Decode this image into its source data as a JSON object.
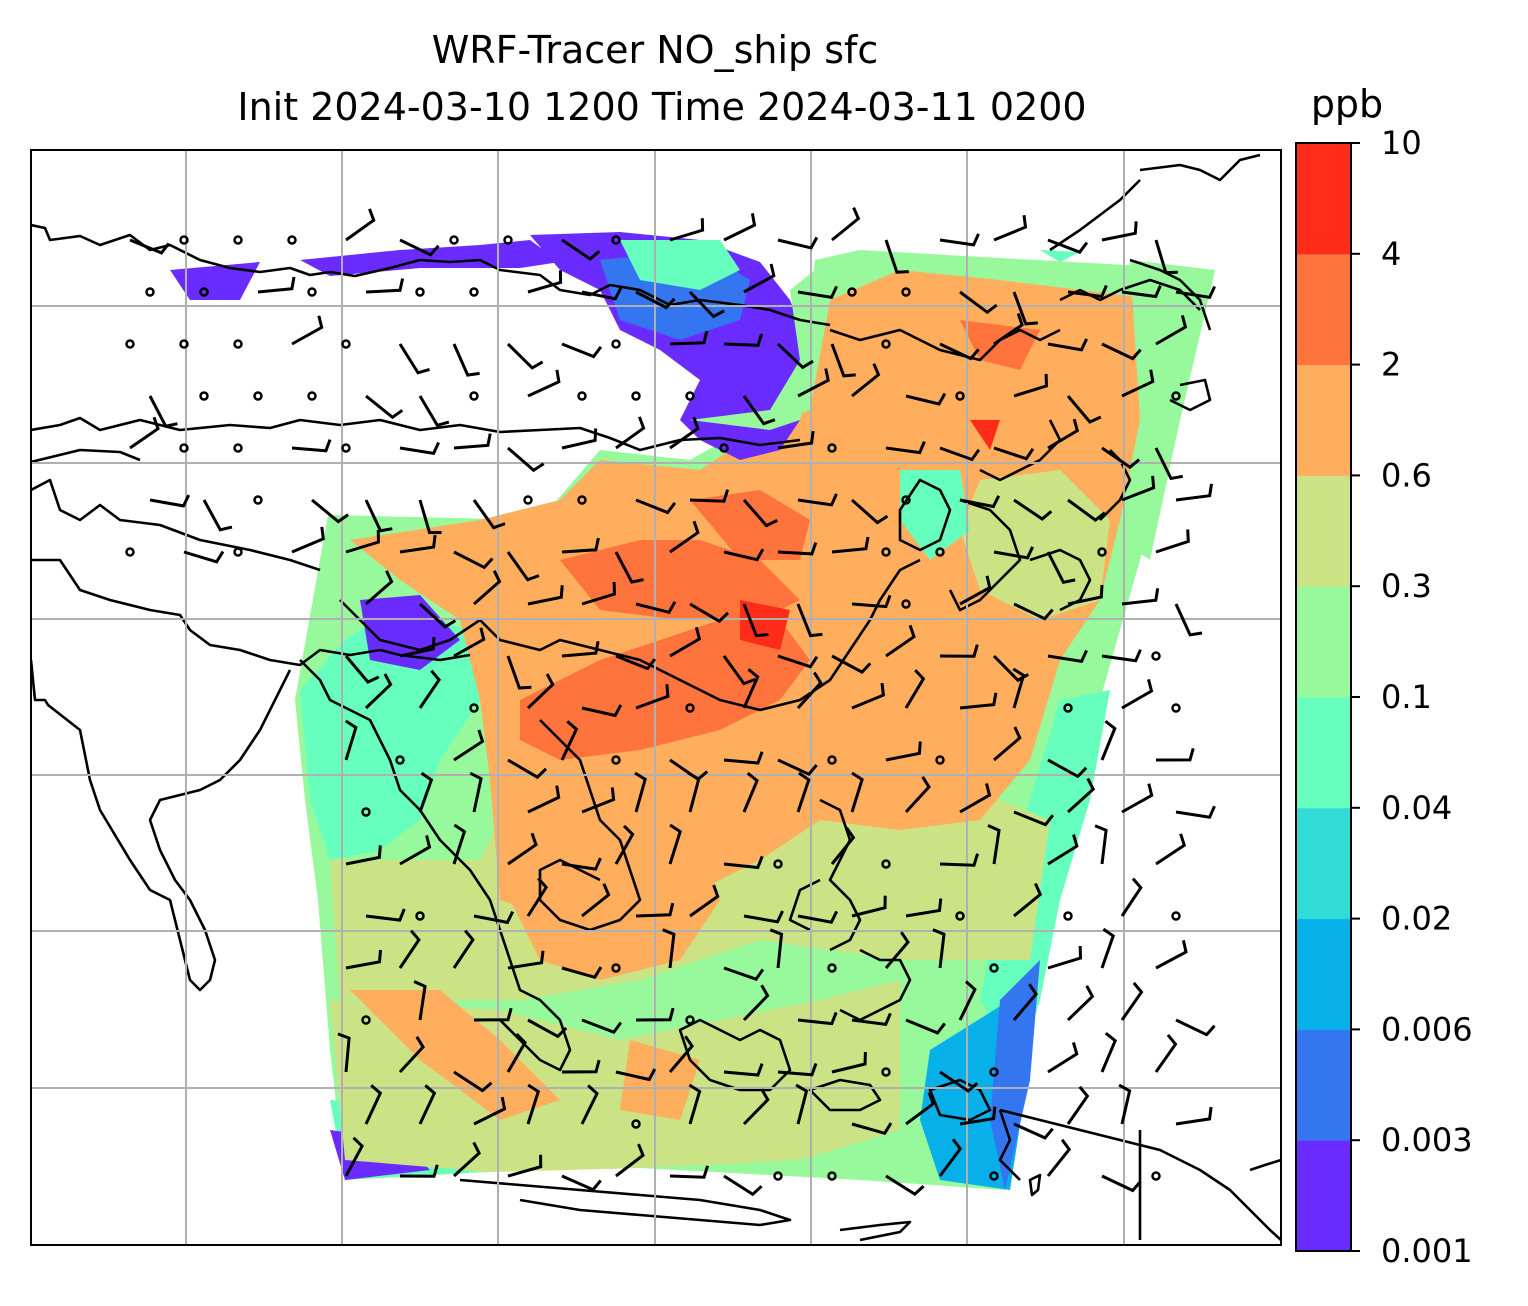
{
  "title_line1": "WRF-Tracer NO_ship sfc",
  "title_line2": "Init 2024-03-10 1200 Time 2024-03-11 0200",
  "colorbar": {
    "unit": "ppb",
    "levels": [
      "0.001",
      "0.003",
      "0.006",
      "0.02",
      "0.04",
      "0.1",
      "0.3",
      "0.6",
      "2",
      "4",
      "10"
    ],
    "colors": [
      "#6a2bff",
      "#3476f0",
      "#08b0ea",
      "#31dcd6",
      "#66ffbe",
      "#98f99c",
      "#cbe285",
      "#ffae5e",
      "#ff743c",
      "#ff2c19"
    ]
  },
  "map": {
    "projection": "Lambert conformal",
    "field": "NO_ship surface concentration with wind barbs",
    "gridlines": true,
    "coastlines": true
  }
}
